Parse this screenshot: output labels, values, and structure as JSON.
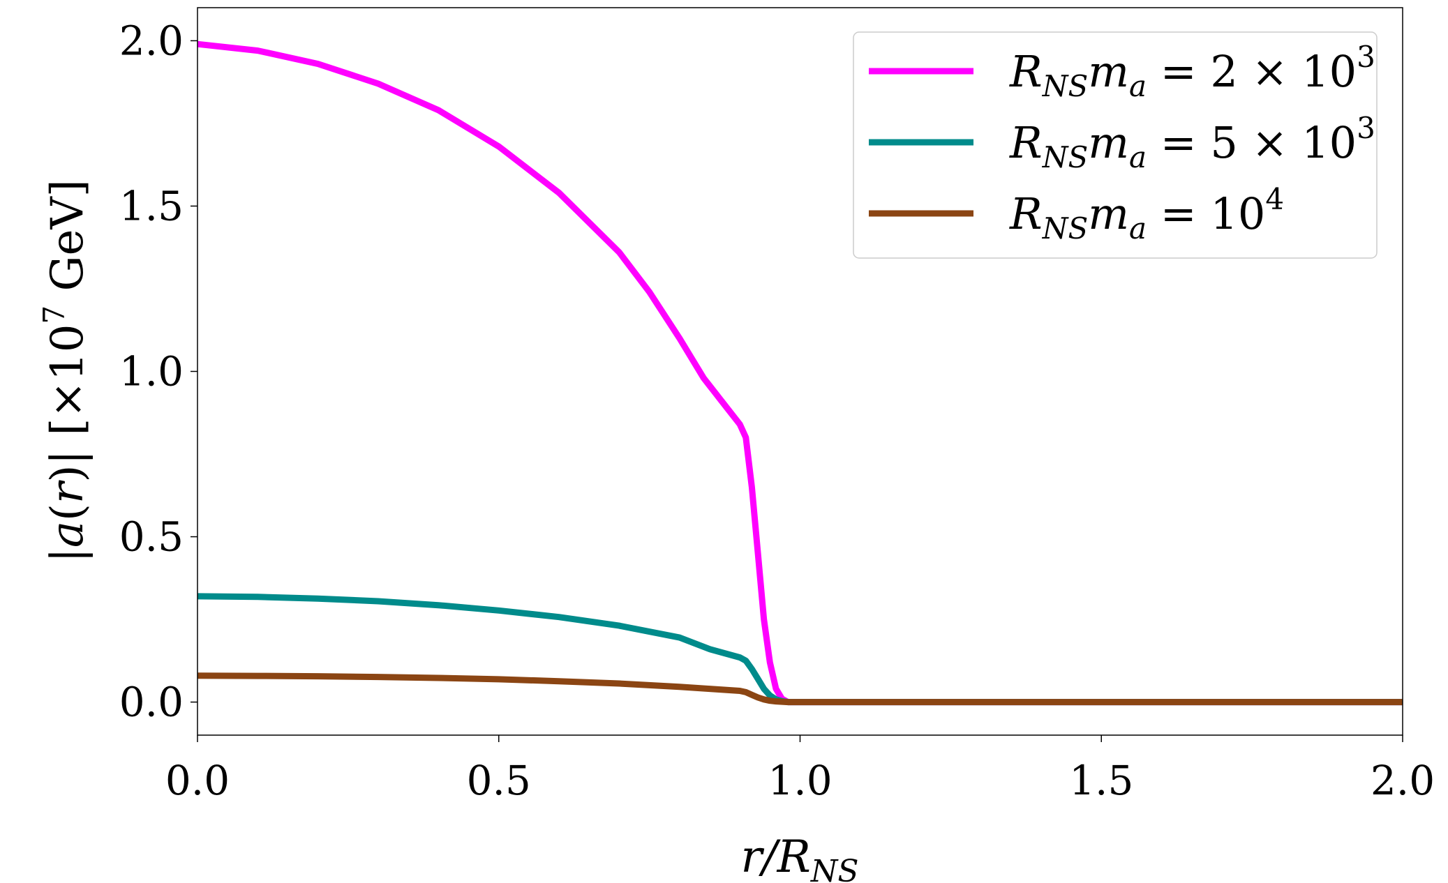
{
  "chart_data": {
    "type": "line",
    "xlabel": "r/R_NS",
    "ylabel": "|a(r)| [×10^7 GeV]",
    "xlim": [
      0.0,
      2.0
    ],
    "ylim": [
      -0.1,
      2.1
    ],
    "x_ticks": [
      "0.0",
      "0.5",
      "1.0",
      "1.5",
      "2.0"
    ],
    "y_ticks": [
      "0.0",
      "0.5",
      "1.0",
      "1.5",
      "2.0"
    ],
    "grid": false,
    "legend_position": "top-right",
    "series": [
      {
        "name": "R_NS m_a = 2 × 10^3",
        "label_base": "R",
        "label_sub": "NS",
        "label_mid": "m",
        "label_mid_sub": "a",
        "label_rest": " = 2 × 10",
        "label_sup": "3",
        "color": "#ff00ff",
        "x": [
          0.0,
          0.1,
          0.2,
          0.3,
          0.4,
          0.5,
          0.6,
          0.7,
          0.75,
          0.8,
          0.84,
          0.87,
          0.9,
          0.91,
          0.92,
          0.93,
          0.94,
          0.95,
          0.96,
          0.97,
          0.98,
          1.0,
          1.5,
          2.0
        ],
        "y": [
          1.99,
          1.97,
          1.93,
          1.87,
          1.79,
          1.68,
          1.54,
          1.36,
          1.24,
          1.1,
          0.98,
          0.91,
          0.84,
          0.8,
          0.65,
          0.45,
          0.25,
          0.12,
          0.04,
          0.01,
          0.0,
          0.0,
          0.0,
          0.0
        ]
      },
      {
        "name": "R_NS m_a = 5 × 10^3",
        "label_base": "R",
        "label_sub": "NS",
        "label_mid": "m",
        "label_mid_sub": "a",
        "label_rest": " = 5 × 10",
        "label_sup": "3",
        "color": "#008b8b",
        "x": [
          0.0,
          0.1,
          0.2,
          0.3,
          0.4,
          0.5,
          0.6,
          0.7,
          0.8,
          0.85,
          0.9,
          0.91,
          0.92,
          0.93,
          0.94,
          0.95,
          0.96,
          0.97,
          0.98,
          1.0,
          1.5,
          2.0
        ],
        "y": [
          0.32,
          0.318,
          0.313,
          0.305,
          0.293,
          0.277,
          0.257,
          0.231,
          0.195,
          0.16,
          0.135,
          0.125,
          0.1,
          0.07,
          0.04,
          0.02,
          0.008,
          0.003,
          0.0,
          0.0,
          0.0,
          0.0
        ]
      },
      {
        "name": "R_NS m_a = 10^4",
        "label_base": "R",
        "label_sub": "NS",
        "label_mid": "m",
        "label_mid_sub": "a",
        "label_rest": " = 10",
        "label_sup": "4",
        "color": "#8b4513",
        "x": [
          0.0,
          0.1,
          0.2,
          0.3,
          0.4,
          0.5,
          0.6,
          0.7,
          0.8,
          0.85,
          0.9,
          0.91,
          0.92,
          0.93,
          0.94,
          0.95,
          0.96,
          0.98,
          1.0,
          1.5,
          2.0
        ],
        "y": [
          0.08,
          0.079,
          0.078,
          0.076,
          0.073,
          0.069,
          0.063,
          0.056,
          0.046,
          0.04,
          0.034,
          0.03,
          0.022,
          0.014,
          0.008,
          0.004,
          0.002,
          0.0,
          0.0,
          0.0,
          0.0
        ]
      }
    ]
  }
}
